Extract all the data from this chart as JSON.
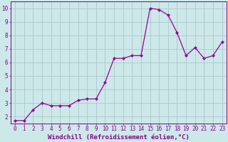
{
  "x": [
    0,
    1,
    2,
    3,
    4,
    5,
    6,
    7,
    8,
    9,
    10,
    11,
    12,
    13,
    14,
    15,
    16,
    17,
    18,
    19,
    20,
    21,
    22,
    23
  ],
  "y": [
    1.7,
    1.7,
    2.5,
    3.0,
    2.8,
    2.8,
    2.8,
    3.2,
    3.3,
    3.3,
    4.5,
    6.3,
    6.3,
    6.5,
    6.5,
    10.0,
    9.9,
    9.5,
    8.2,
    6.5,
    7.1,
    6.3,
    6.5,
    7.5
  ],
  "line_color": "#990099",
  "marker": "D",
  "marker_size": 2.2,
  "bg_color": "#cce8e8",
  "grid_color": "#aac8cc",
  "xlabel": "Windchill (Refroidissement éolien,°C)",
  "xlim": [
    -0.5,
    23.5
  ],
  "ylim": [
    1.5,
    10.5
  ],
  "yticks": [
    2,
    3,
    4,
    5,
    6,
    7,
    8,
    9,
    10
  ],
  "xticks": [
    0,
    1,
    2,
    3,
    4,
    5,
    6,
    7,
    8,
    9,
    10,
    11,
    12,
    13,
    14,
    15,
    16,
    17,
    18,
    19,
    20,
    21,
    22,
    23
  ],
  "tick_color": "#880088",
  "label_color": "#880088",
  "spine_color": "#880088",
  "tick_fontsize": 5.5,
  "xlabel_fontsize": 6.5
}
